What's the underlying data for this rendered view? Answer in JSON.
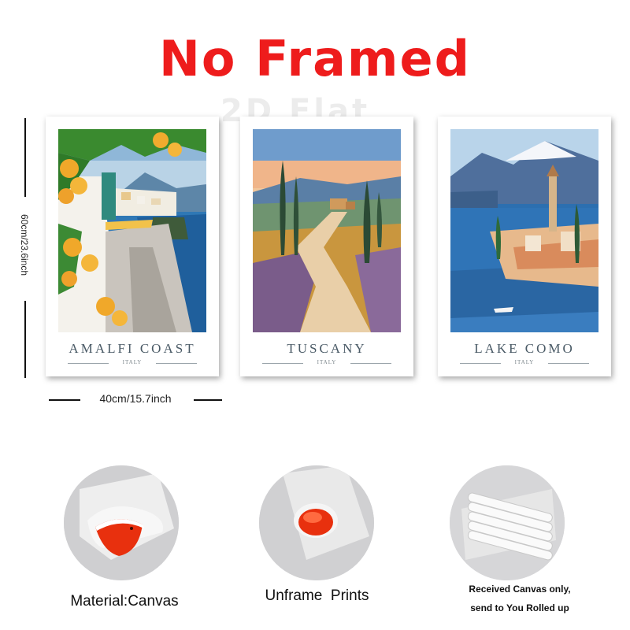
{
  "headline": "No Framed",
  "watermark": "2D Flat",
  "dimensions": {
    "height_label": "60cm/23.6inch",
    "width_label": "40cm/15.7inch"
  },
  "posters": [
    {
      "title": "AMALFI COAST",
      "subtitle": "ITALY"
    },
    {
      "title": "TUSCANY",
      "subtitle": "ITALY"
    },
    {
      "title": "LAKE COMO",
      "subtitle": "ITALY"
    }
  ],
  "features": [
    {
      "caption": "Material:Canvas"
    },
    {
      "caption": "Unframe  Prints"
    },
    {
      "caption_line1": "Received Canvas only,",
      "caption_line2": "send to You Rolled up"
    }
  ],
  "colors": {
    "headline": "#ee1c1c",
    "poster_text": "#4a5a66",
    "canvas_back": "#e8300e"
  }
}
